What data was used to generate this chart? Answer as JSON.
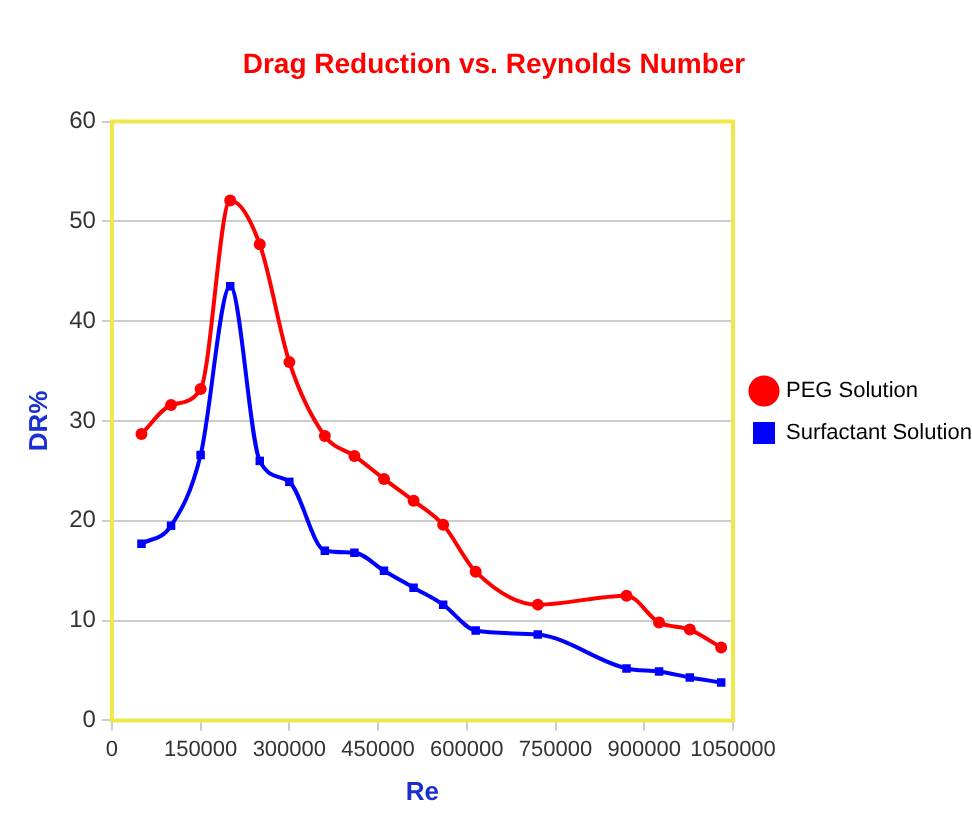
{
  "chart_data": {
    "type": "line",
    "title": "Drag Reduction vs. Reynolds Number",
    "xlabel": "Re",
    "ylabel": "DR%",
    "x": [
      50000,
      100000,
      150000,
      200000,
      250000,
      300000,
      360000,
      410000,
      460000,
      510000,
      560000,
      615000,
      720000,
      870000,
      925000,
      977000,
      1030000
    ],
    "series": [
      {
        "name": "PEG Solution",
        "color": "#ff0000",
        "marker": "circle",
        "values": [
          28.7,
          31.6,
          33.2,
          52.1,
          47.7,
          35.9,
          28.5,
          26.5,
          24.2,
          22.0,
          19.6,
          14.9,
          11.6,
          12.5,
          9.8,
          9.1,
          7.3
        ]
      },
      {
        "name": "Surfactant Solution",
        "color": "#0000ff",
        "marker": "square",
        "values": [
          17.7,
          19.5,
          26.6,
          43.5,
          26.0,
          23.9,
          17.0,
          16.8,
          15.0,
          13.3,
          11.6,
          9.0,
          8.6,
          5.2,
          4.9,
          4.3,
          3.8
        ]
      }
    ],
    "xlim": [
      0,
      1050000
    ],
    "xticks": [
      0,
      150000,
      300000,
      450000,
      600000,
      750000,
      900000,
      1050000
    ],
    "ylim": [
      0,
      60
    ],
    "yticks": [
      0,
      10,
      20,
      30,
      40,
      50,
      60
    ],
    "grid": "y",
    "legend": "right",
    "line_style": "solid"
  }
}
